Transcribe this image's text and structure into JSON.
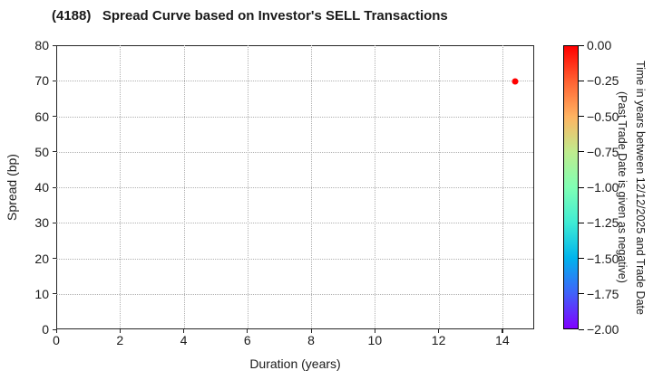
{
  "chart_data": {
    "type": "scatter",
    "title": "(4188)   Spread Curve based on Investor's SELL Transactions",
    "xlabel": "Duration (years)",
    "ylabel": "Spread (bp)",
    "xlim": [
      0,
      15
    ],
    "ylim": [
      0,
      80
    ],
    "xticks": [
      0,
      2,
      4,
      6,
      8,
      10,
      12,
      14
    ],
    "yticks": [
      0,
      10,
      20,
      30,
      40,
      50,
      60,
      70,
      80
    ],
    "grid": true,
    "legend_position": "none",
    "points": [
      {
        "x": 14.4,
        "y": 69.8,
        "color_value": 0.0,
        "color": "#ff0000"
      }
    ],
    "colorbar": {
      "label_line1": "Time in years between 12/12/2025 and Trade Date",
      "label_line2": "(Past Trade Date is given as negative)",
      "tick_labels": [
        "0.00",
        "−0.25",
        "−0.50",
        "−0.75",
        "−1.00",
        "−1.25",
        "−1.50",
        "−1.75",
        "−2.00"
      ],
      "vmax": 0.0,
      "vmin": -2.0,
      "colormap": "rainbow",
      "gradient_stops": [
        "#ff0000",
        "#ff6232",
        "#ffb462",
        "#bfec8e",
        "#80ffb4",
        "#40ecd4",
        "#00b4ec",
        "#4062fa",
        "#8000ff"
      ]
    },
    "colors": {
      "grid": "#b0b0b0",
      "spine": "#262626",
      "text": "#1a1a1a"
    }
  }
}
